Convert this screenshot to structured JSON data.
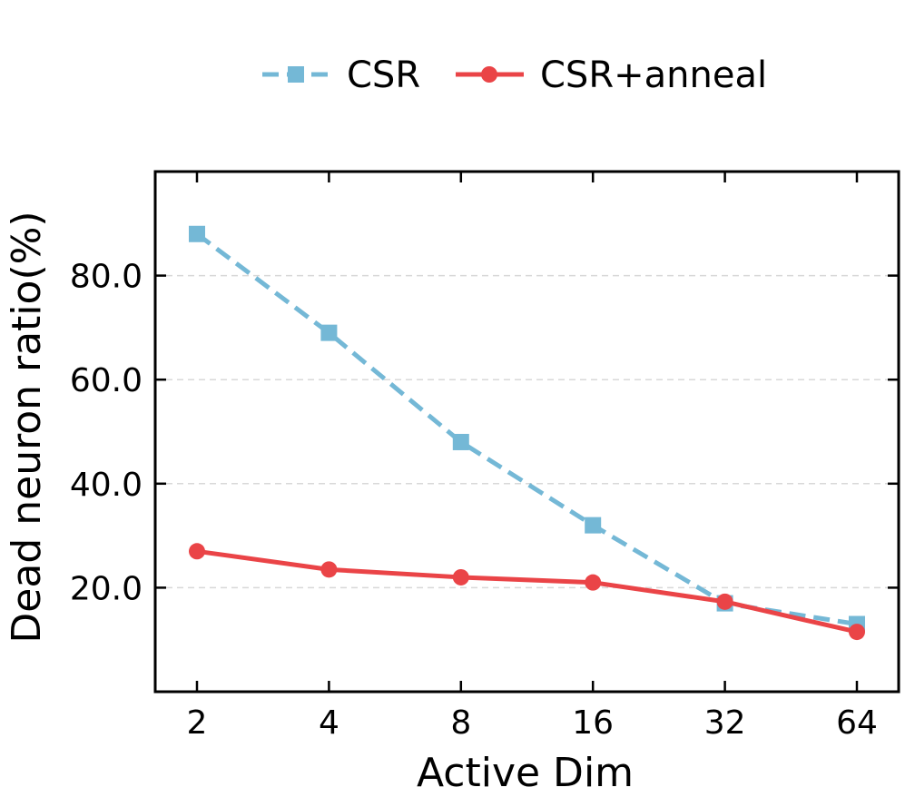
{
  "chart_data": {
    "type": "line",
    "xlabel": "Active Dim",
    "ylabel": "Dead neuron ratio(%)",
    "categories": [
      "2",
      "4",
      "8",
      "16",
      "32",
      "64"
    ],
    "x_scale": "log2",
    "ylim": [
      0,
      100
    ],
    "yticks": [
      "20.0",
      "40.0",
      "60.0",
      "80.0"
    ],
    "ytick_values": [
      20,
      40,
      60,
      80
    ],
    "grid": "horizontal dashed",
    "legend": "top-center",
    "series": [
      {
        "name": "CSR",
        "values": [
          88,
          69,
          48,
          32,
          17,
          13
        ],
        "color": "#74B8D6",
        "marker": "square",
        "line_style": "dashed"
      },
      {
        "name": "CSR+anneal",
        "values": [
          27,
          23.5,
          22,
          21,
          17.3,
          11.5
        ],
        "color": "#EA4447",
        "marker": "circle",
        "line_style": "solid"
      }
    ]
  }
}
